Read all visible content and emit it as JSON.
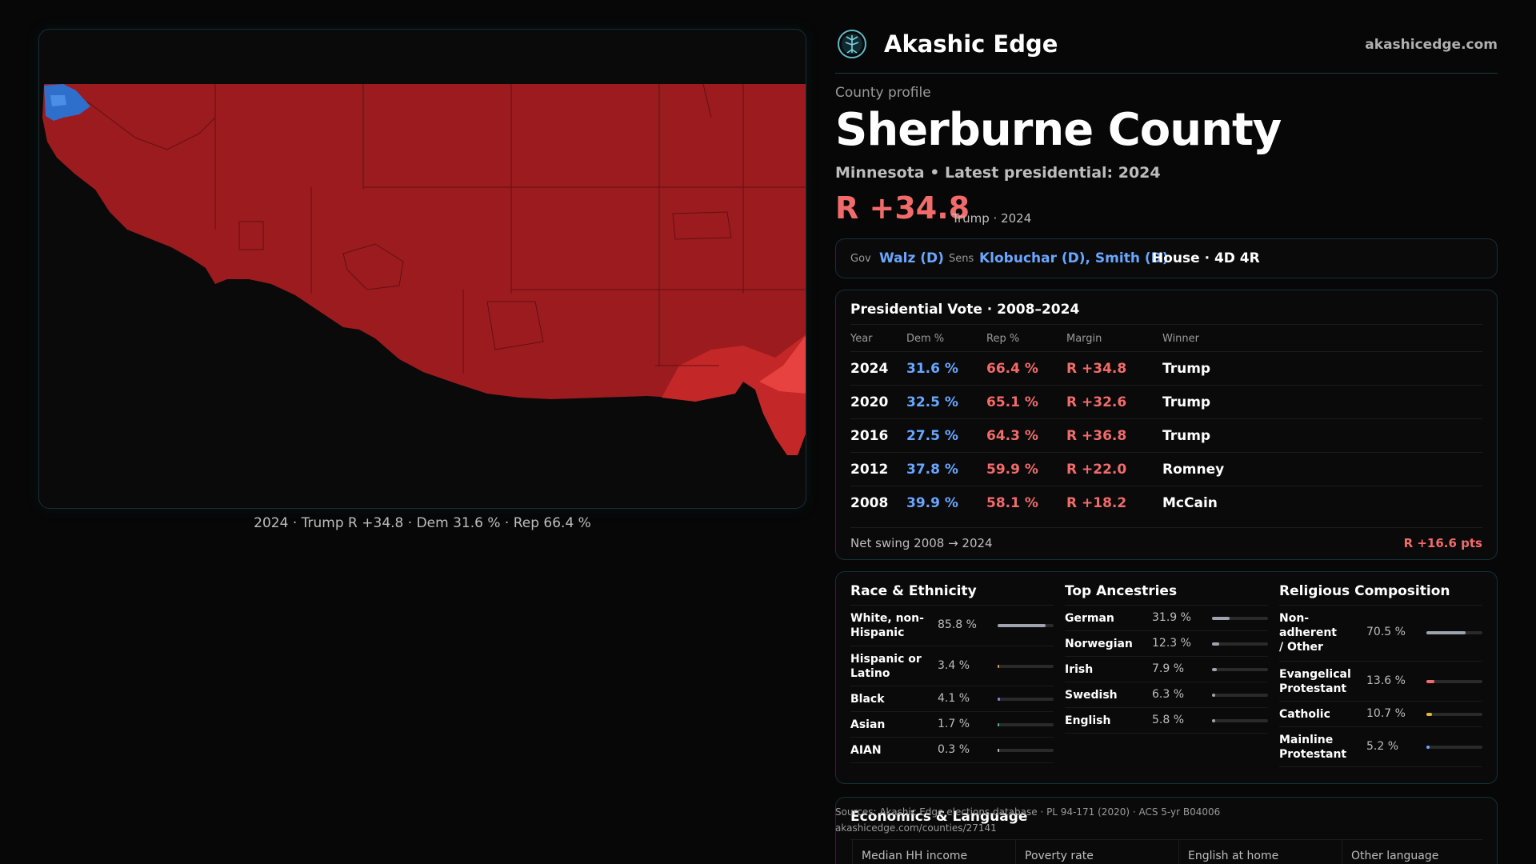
{
  "map": {
    "caption": "2024 · Trump R +34.8 · Dem 31.6 % · Rep 66.4 %",
    "colors": {
      "rep_dark": "#9b1b1e",
      "rep_mid": "#c32727",
      "rep_light": "#e84240",
      "dem": "#2f6fcc",
      "dem_light": "#4b8ee6"
    }
  },
  "brand": {
    "name": "Akashic Edge",
    "url": "akashicedge.com",
    "logo_icon": "tree-of-life-icon"
  },
  "profile": {
    "eyebrow": "County profile",
    "title": "Sherburne County",
    "subtitle": "Minnesota • Latest presidential: 2024",
    "margin": "R +34.8",
    "margin_note": "Trump · 2024"
  },
  "officials": {
    "gov_key": "Gov",
    "gov": "Walz (D)",
    "sens_key": "Sens",
    "sens": "Klobuchar (D), Smith (D)",
    "house": "House · 4D 4R"
  },
  "presidential": {
    "title": "Presidential Vote · 2008–2024",
    "headers": [
      "Year",
      "Dem %",
      "Rep %",
      "Margin",
      "Winner"
    ],
    "rows": [
      {
        "year": "2024",
        "dem": "31.6 %",
        "rep": "66.4 %",
        "margin": "R +34.8",
        "winner": "Trump"
      },
      {
        "year": "2020",
        "dem": "32.5 %",
        "rep": "65.1 %",
        "margin": "R +32.6",
        "winner": "Trump"
      },
      {
        "year": "2016",
        "dem": "27.5 %",
        "rep": "64.3 %",
        "margin": "R +36.8",
        "winner": "Trump"
      },
      {
        "year": "2012",
        "dem": "37.8 %",
        "rep": "59.9 %",
        "margin": "R +22.0",
        "winner": "Romney"
      },
      {
        "year": "2008",
        "dem": "39.9 %",
        "rep": "58.1 %",
        "margin": "R +18.2",
        "winner": "McCain"
      }
    ],
    "swing_label": "Net swing 2008 → 2024",
    "swing_value": "R +16.6 pts"
  },
  "race": {
    "title": "Race & Ethnicity",
    "items": [
      {
        "label": "White, non-Hispanic",
        "value": "85.8 %",
        "pct": 85.8,
        "color": "#9ea3ad"
      },
      {
        "label": "Hispanic or Latino",
        "value": "3.4 %",
        "pct": 3.4,
        "color": "#e59b3c"
      },
      {
        "label": "Black",
        "value": "4.1 %",
        "pct": 4.1,
        "color": "#8e7cf0"
      },
      {
        "label": "Asian",
        "value": "1.7 %",
        "pct": 1.7,
        "color": "#3fbf8f"
      },
      {
        "label": "AIAN",
        "value": "0.3 %",
        "pct": 0.3,
        "color": "#c0c0c0"
      }
    ]
  },
  "ancestry": {
    "title": "Top Ancestries",
    "items": [
      {
        "label": "German",
        "value": "31.9 %",
        "pct": 31.9,
        "color": "#9ea3ad"
      },
      {
        "label": "Norwegian",
        "value": "12.3 %",
        "pct": 12.3,
        "color": "#9ea3ad"
      },
      {
        "label": "Irish",
        "value": "7.9 %",
        "pct": 7.9,
        "color": "#9ea3ad"
      },
      {
        "label": "Swedish",
        "value": "6.3 %",
        "pct": 6.3,
        "color": "#9ea3ad"
      },
      {
        "label": "English",
        "value": "5.8 %",
        "pct": 5.8,
        "color": "#9ea3ad"
      }
    ]
  },
  "religion": {
    "title": "Religious Composition",
    "items": [
      {
        "label": "Non-adherent / Other",
        "value": "70.5 %",
        "pct": 70.5,
        "color": "#9ea3ad"
      },
      {
        "label": "Evangelical Protestant",
        "value": "13.6 %",
        "pct": 13.6,
        "color": "#f26b6b"
      },
      {
        "label": "Catholic",
        "value": "10.7 %",
        "pct": 10.7,
        "color": "#e8b23c"
      },
      {
        "label": "Mainline Protestant",
        "value": "5.2 %",
        "pct": 5.2,
        "color": "#6aa6ff"
      }
    ]
  },
  "economics": {
    "title": "Economics & Language",
    "headers": [
      "Median HH income",
      "Poverty rate",
      "English at home",
      "Other language"
    ]
  },
  "sources": {
    "line1": "Sources: Akashic Edge elections database · PL 94-171 (2020) · ACS 5-yr B04006",
    "line2": "akashicedge.com/counties/27141"
  }
}
